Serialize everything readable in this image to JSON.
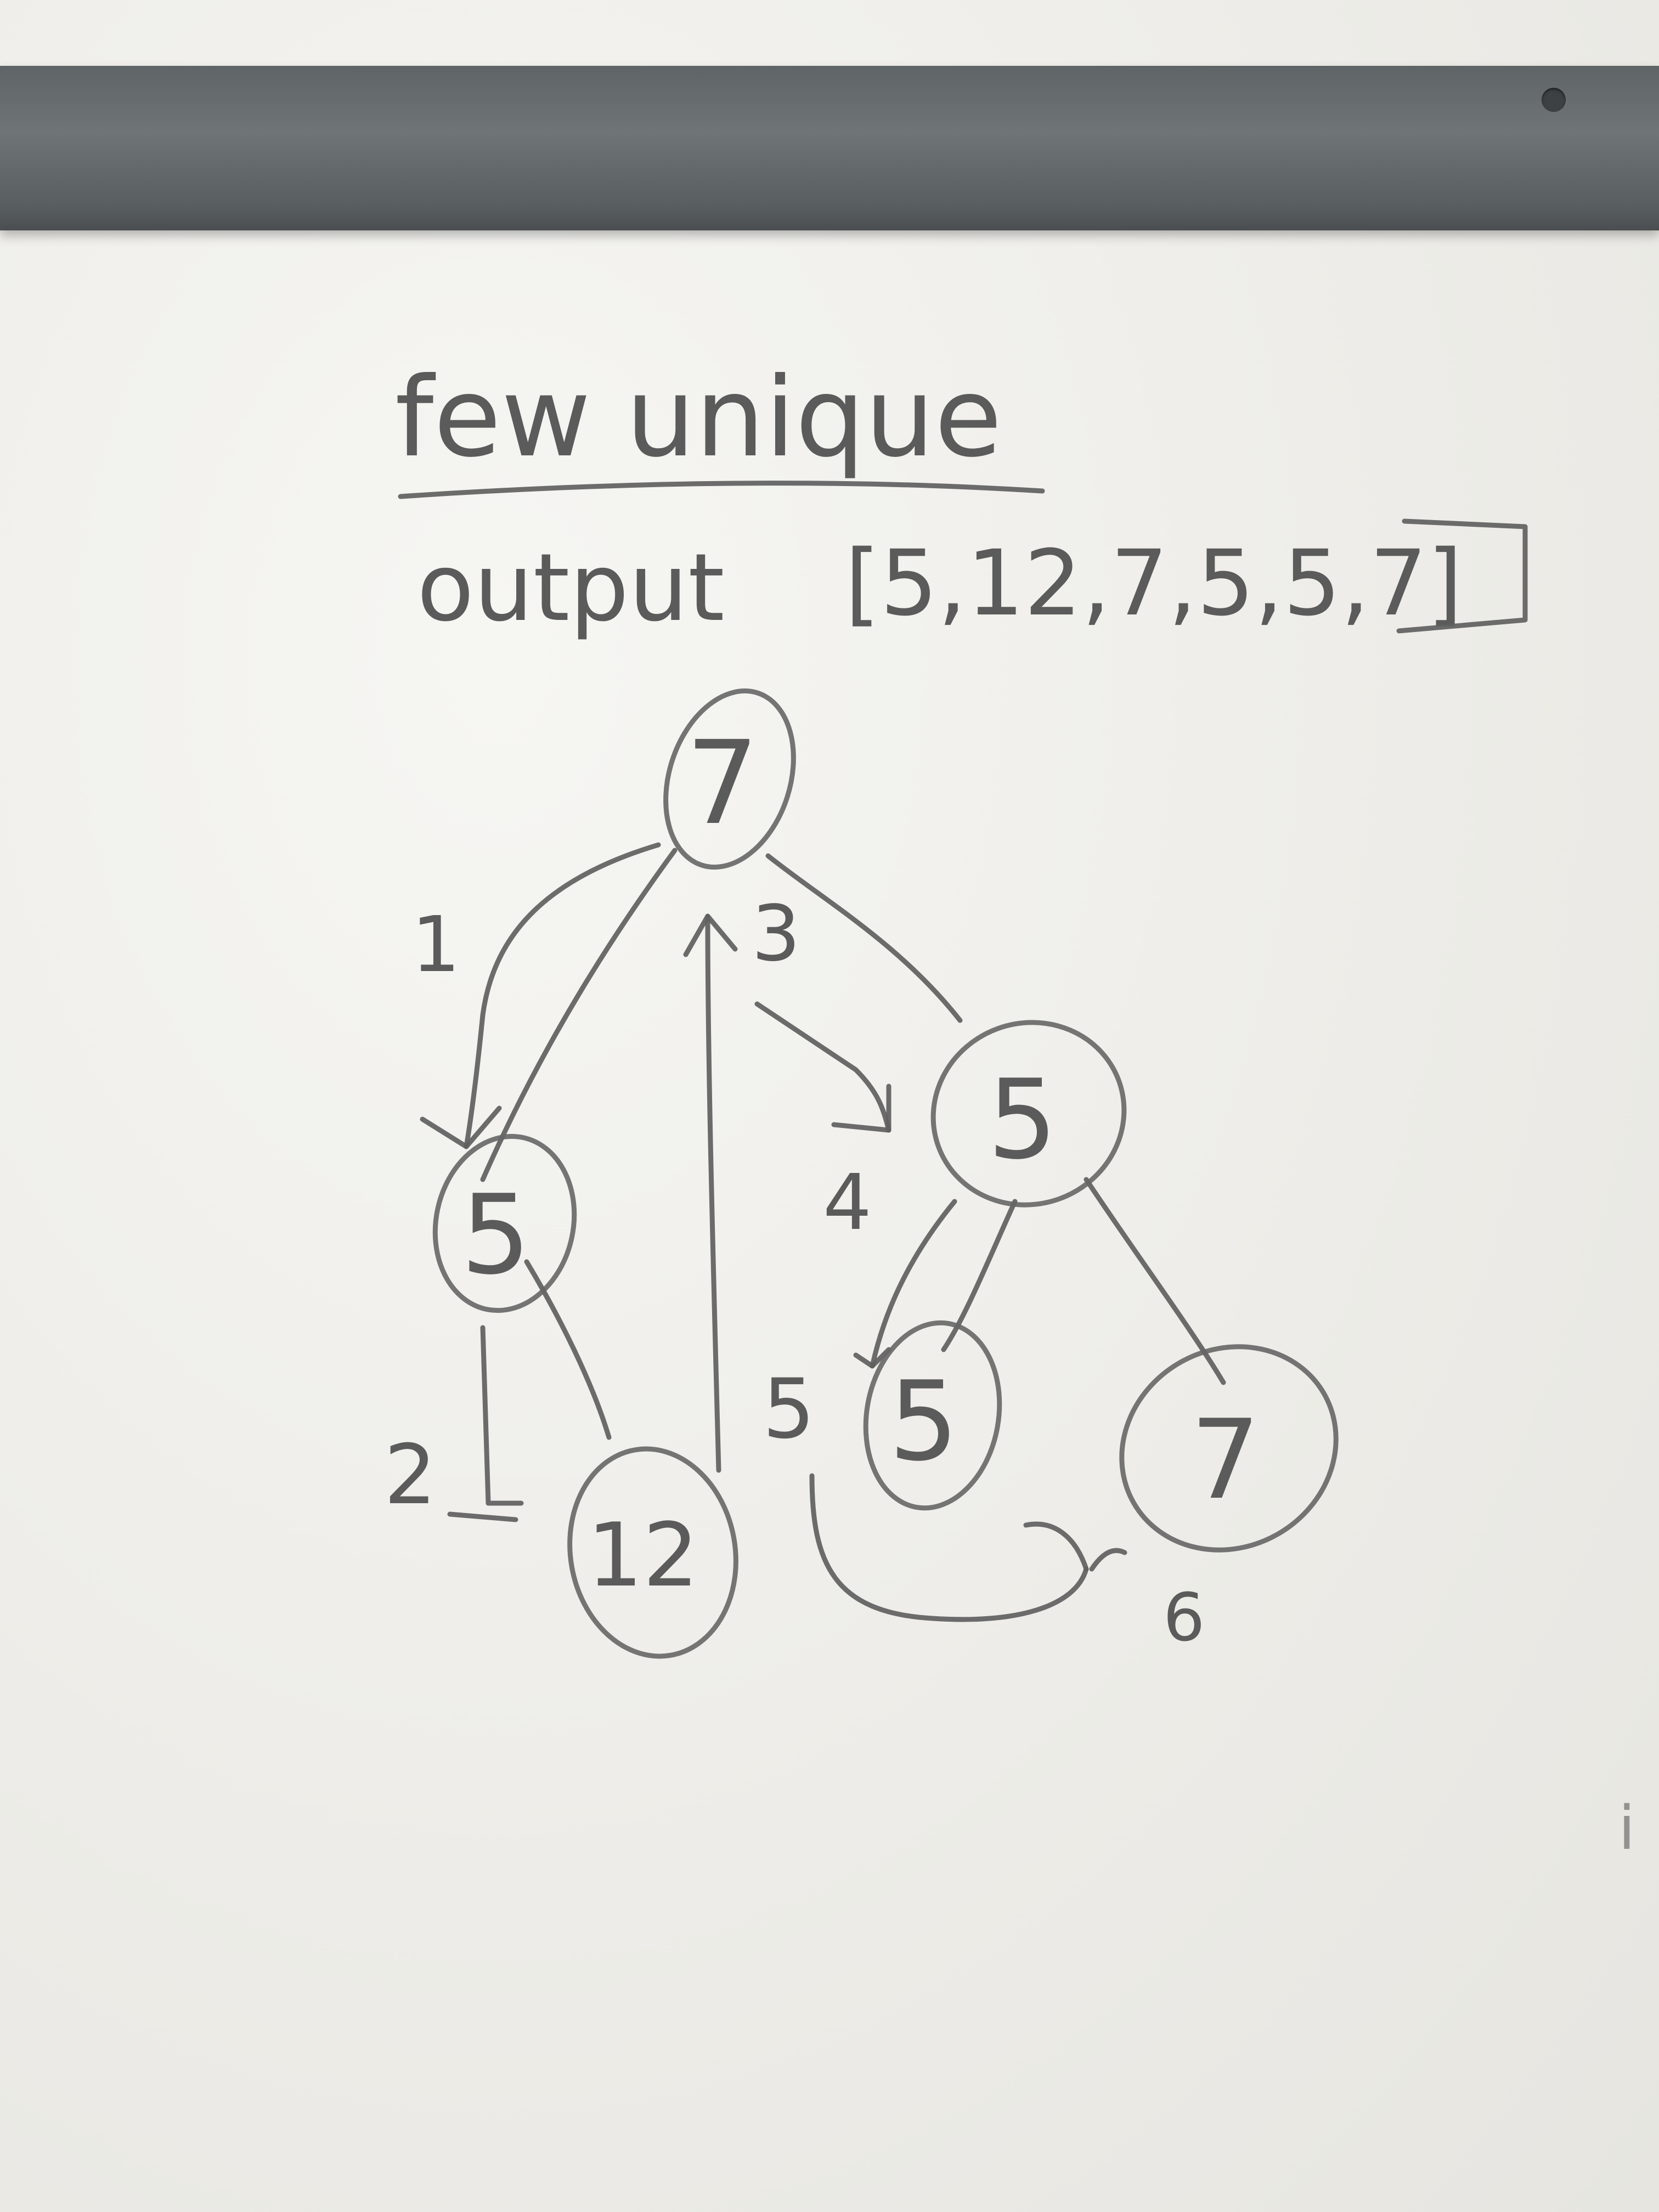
{
  "heading": "few unique",
  "output_label": "output",
  "output_value": "[5,12,7,5,5,7]",
  "tree": {
    "nodes": [
      {
        "id": "root",
        "value": "7"
      },
      {
        "id": "left",
        "value": "5"
      },
      {
        "id": "left-right",
        "value": "12"
      },
      {
        "id": "right",
        "value": "5"
      },
      {
        "id": "right-left",
        "value": "5"
      },
      {
        "id": "right-right",
        "value": "7"
      }
    ],
    "step_labels": [
      "1",
      "2",
      "3",
      "4",
      "5",
      "6"
    ]
  },
  "stray_mark": "i"
}
